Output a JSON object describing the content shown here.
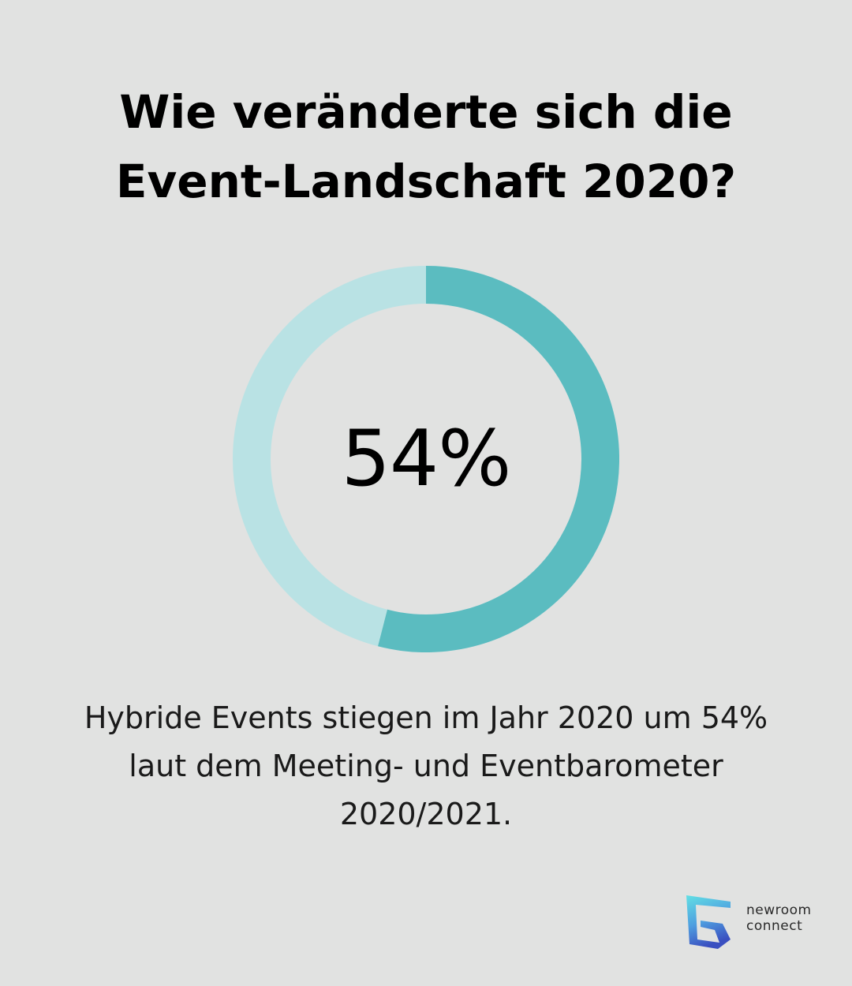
{
  "title": {
    "line1": "Wie veränderte sich die",
    "line2": "Event-Landschaft 2020?"
  },
  "chart_data": {
    "type": "donut",
    "value_percent": 54,
    "center_label": "54%",
    "colors": {
      "filled": "#5bbcc0",
      "remaining": "#b9e2e4"
    }
  },
  "description": {
    "line1": "Hybride Events stiegen im Jahr 2020 um 54%",
    "line2": "laut dem Meeting- und Eventbarometer",
    "line3": "2020/2021."
  },
  "logo": {
    "word1": "newroom",
    "word2": "connect",
    "icon": "newroom-connect-logo-icon"
  },
  "colors": {
    "background": "#e1e2e1",
    "text": "#000000"
  }
}
